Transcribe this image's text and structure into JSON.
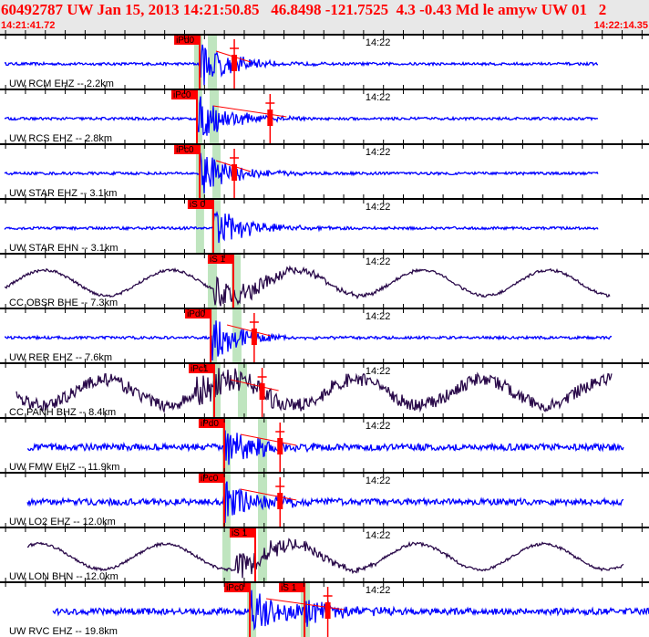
{
  "header": {
    "title": "60492787 UW Jan 15, 2013 14:21:50.85   46.8498 -121.7525  4.3 -0.43 Md le amyw UW 01   2",
    "start_time": "14:21:41.72",
    "end_time": "14:22:14.35"
  },
  "chart_data": {
    "type": "line",
    "x_axis": {
      "unit": "seconds after 14:21:00",
      "range": [
        41.72,
        74.35
      ],
      "tick_interval_s": 1,
      "tick_label": "14:22",
      "tick_label_time_s": 60
    },
    "colors": {
      "short_period": "#0000ff",
      "broadband": "#2a0a4a",
      "pick": "#ff0000",
      "window": "#bfe5bf"
    },
    "traces": [
      {
        "label": "UW RCM EHZ -- 2.2km",
        "kind": "short_period",
        "span_s": [
          41.95,
          71.8
        ],
        "picks": [
          {
            "label": "iPd0",
            "time_s": 51.76
          }
        ],
        "windows": [
          [
            51.48,
            51.89
          ],
          [
            52.17,
            52.63
          ]
        ],
        "coda_s": 53.5
      },
      {
        "label": "UW RCS EHZ -- 2.8km",
        "kind": "short_period",
        "span_s": [
          41.95,
          71.8
        ],
        "picks": [
          {
            "label": "iPc0",
            "time_s": 51.62
          }
        ],
        "windows": [
          [
            51.57,
            51.89
          ],
          [
            52.26,
            52.72
          ]
        ],
        "coda_s": 55.3
      },
      {
        "label": "UW STAR EHZ -- 3.1km",
        "kind": "short_period",
        "span_s": [
          41.95,
          71.8
        ],
        "picks": [
          {
            "label": "iPc0",
            "time_s": 51.76
          }
        ],
        "windows": [
          [
            51.57,
            52.03
          ],
          [
            52.4,
            52.81
          ]
        ],
        "coda_s": 53.5
      },
      {
        "label": "UW STAR EHN -- 3.1km",
        "kind": "short_period",
        "span_s": [
          41.95,
          71.8
        ],
        "picks": [
          {
            "label": "iS 0",
            "time_s": 52.44
          }
        ],
        "windows": [
          [
            51.57,
            51.98
          ],
          [
            52.35,
            52.81
          ]
        ],
        "coda_s": null
      },
      {
        "label": "CC OBSR BHE -- 7.3km",
        "kind": "broadband",
        "span_s": [
          41.95,
          72.4
        ],
        "picks": [
          {
            "label": "iS 1",
            "time_s": 53.45
          }
        ],
        "windows": [
          [
            52.17,
            52.63
          ],
          [
            53.36,
            53.82
          ]
        ],
        "coda_s": null
      },
      {
        "label": "UW RER EHZ -- 7.6km",
        "kind": "short_period",
        "span_s": [
          41.95,
          72.5
        ],
        "picks": [
          {
            "label": "iPd0",
            "time_s": 52.31
          }
        ],
        "windows": [
          [
            52.26,
            52.63
          ],
          [
            53.41,
            53.86
          ]
        ],
        "coda_s": 54.5
      },
      {
        "label": "CC PANH BHZ -- 8.4km",
        "kind": "broadband",
        "span_s": [
          42.55,
          72.5
        ],
        "picks": [
          {
            "label": "iPc1",
            "time_s": 52.49
          }
        ],
        "windows": [
          [
            52.4,
            52.81
          ],
          [
            53.68,
            54.14
          ]
        ],
        "coda_s": 54.9
      },
      {
        "label": "UW FMW EHZ -- 11.9km",
        "kind": "short_period",
        "span_s": [
          43.1,
          73.1
        ],
        "picks": [
          {
            "label": "iPd0",
            "time_s": 52.99
          }
        ],
        "windows": [
          [
            52.9,
            53.31
          ],
          [
            54.69,
            55.15
          ]
        ],
        "coda_s": 55.8
      },
      {
        "label": "UW LO2 EHZ -- 12.0km",
        "kind": "short_period",
        "span_s": [
          43.1,
          73.1
        ],
        "picks": [
          {
            "label": "iPc0",
            "time_s": 52.99
          }
        ],
        "windows": [
          [
            52.9,
            53.31
          ],
          [
            54.69,
            55.15
          ]
        ],
        "coda_s": 55.8
      },
      {
        "label": "UW LON BHN -- 12.0km",
        "kind": "broadband",
        "span_s": [
          43.1,
          73.1
        ],
        "picks": [
          {
            "label": "iS 1",
            "time_s": 54.55
          }
        ],
        "windows": [
          [
            52.9,
            53.31
          ],
          [
            54.69,
            55.15
          ]
        ],
        "coda_s": null
      },
      {
        "label": "UW RVC EHZ -- 19.8km",
        "kind": "short_period",
        "span_s": [
          44.4,
          74.35
        ],
        "picks": [
          {
            "label": "iPc0",
            "time_s": 54.28
          },
          {
            "label": "iS 1",
            "time_s": 57.03
          }
        ],
        "windows": [
          [
            54.14,
            54.6
          ],
          [
            56.84,
            57.3
          ]
        ],
        "coda_s": 58.2
      }
    ]
  }
}
